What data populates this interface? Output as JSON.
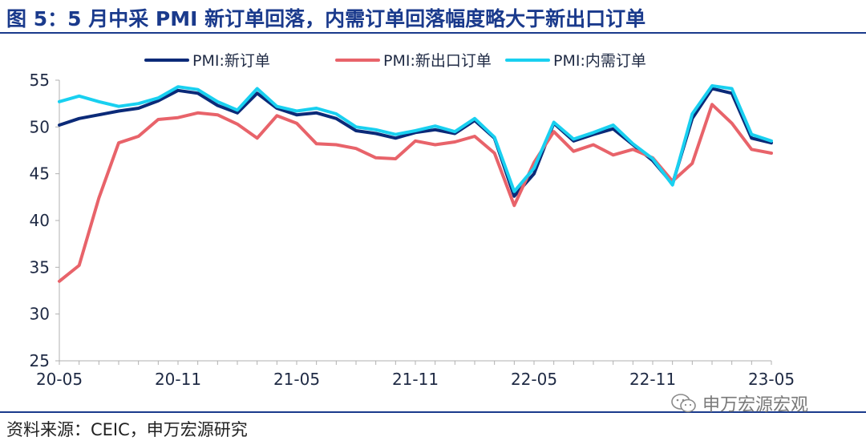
{
  "title": "图 5：5 月中采 PMI 新订单回落，内需订单回落幅度略大于新出口订单",
  "source": "资料来源：CEIC，申万宏源研究",
  "watermark": "申万宏源宏观",
  "chart_data": {
    "type": "line",
    "title": "图 5：5 月中采 PMI 新订单回落，内需订单回落幅度略大于新出口订单",
    "xlabel": "",
    "ylabel": "",
    "ylim": [
      25,
      55
    ],
    "yticks": [
      25,
      30,
      35,
      40,
      45,
      50,
      55
    ],
    "legend_position": "top",
    "x": [
      "20-05",
      "20-06",
      "20-07",
      "20-08",
      "20-09",
      "20-10",
      "20-11",
      "20-12",
      "21-01",
      "21-02",
      "21-03",
      "21-04",
      "21-05",
      "21-06",
      "21-07",
      "21-08",
      "21-09",
      "21-10",
      "21-11",
      "21-12",
      "22-01",
      "22-02",
      "22-03",
      "22-04",
      "22-05",
      "22-06",
      "22-07",
      "22-08",
      "22-09",
      "22-10",
      "22-11",
      "22-12",
      "23-01",
      "23-02",
      "23-03",
      "23-04",
      "23-05"
    ],
    "xtick_labels": [
      "20-05",
      "20-11",
      "21-05",
      "21-11",
      "22-05",
      "22-11",
      "23-05"
    ],
    "series": [
      {
        "name": "PMI:新订单",
        "color": "#0b2a78",
        "values": [
          50.2,
          50.9,
          51.3,
          51.7,
          52.0,
          52.8,
          53.9,
          53.6,
          52.3,
          51.5,
          53.6,
          52.0,
          51.3,
          51.5,
          50.9,
          49.6,
          49.3,
          48.8,
          49.4,
          49.7,
          49.3,
          50.7,
          48.8,
          42.6,
          45.0,
          50.4,
          48.5,
          49.2,
          49.8,
          48.1,
          46.4,
          43.9,
          50.9,
          54.1,
          53.6,
          48.8,
          48.3
        ]
      },
      {
        "name": "PMI:新出口订单",
        "color": "#e8636a",
        "values": [
          33.5,
          35.2,
          42.4,
          48.3,
          49.0,
          50.8,
          51.0,
          51.5,
          51.3,
          50.3,
          48.8,
          51.2,
          50.4,
          48.2,
          48.1,
          47.7,
          46.7,
          46.6,
          48.5,
          48.1,
          48.4,
          49.0,
          47.2,
          41.6,
          46.2,
          49.5,
          47.4,
          48.1,
          47.0,
          47.6,
          46.7,
          44.2,
          46.1,
          52.4,
          50.4,
          47.6,
          47.2
        ]
      },
      {
        "name": "PMI:内需订单",
        "color": "#19d0f0",
        "values": [
          52.7,
          53.3,
          52.7,
          52.2,
          52.5,
          53.1,
          54.3,
          54.0,
          52.7,
          51.8,
          54.1,
          52.2,
          51.7,
          52.0,
          51.4,
          50.0,
          49.7,
          49.2,
          49.6,
          50.1,
          49.5,
          50.9,
          48.9,
          43.1,
          45.6,
          50.5,
          48.7,
          49.4,
          50.2,
          48.2,
          46.6,
          43.8,
          51.4,
          54.4,
          54.1,
          49.2,
          48.5
        ]
      }
    ]
  }
}
